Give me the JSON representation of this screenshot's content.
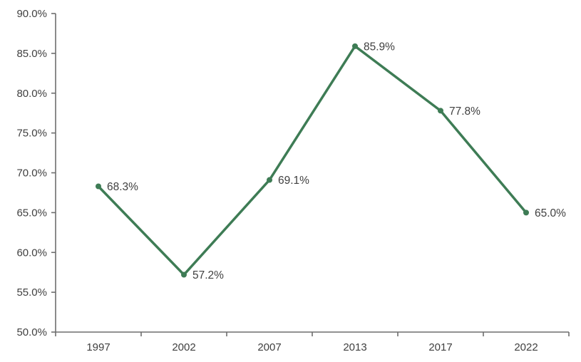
{
  "chart_data": {
    "type": "line",
    "title": "",
    "xlabel": "",
    "ylabel": "",
    "categories": [
      "1997",
      "2002",
      "2007",
      "2013",
      "2017",
      "2022"
    ],
    "series": [
      {
        "name": "share-percent",
        "values": [
          68.3,
          57.2,
          69.1,
          85.9,
          77.8,
          65.0
        ],
        "point_labels": [
          "68.3%",
          "57.2%",
          "69.1%",
          "85.9%",
          "77.8%",
          "65.0%"
        ]
      }
    ],
    "ylim": [
      50,
      90
    ],
    "ytick_step": 5,
    "ytick_labels": [
      "50.0%",
      "55.0%",
      "60.0%",
      "65.0%",
      "70.0%",
      "75.0%",
      "80.0%",
      "85.0%",
      "90.0%"
    ],
    "grid": false,
    "legend_position": "none",
    "colors": {
      "line": "#3E7C55",
      "marker": "#3E7C55",
      "axis": "#6E6E6E",
      "tick_label": "#404040",
      "data_label": "#404040",
      "background": "#FFFFFF"
    }
  }
}
